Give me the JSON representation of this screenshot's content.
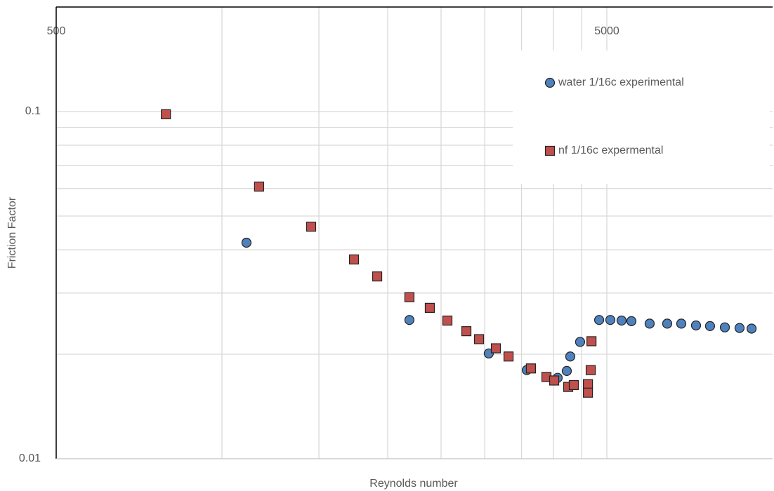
{
  "chart_data": {
    "type": "scatter",
    "x_label": "Reynolds number",
    "y_label": "Friction Factor",
    "xlog": true,
    "ylog": true,
    "grid": true,
    "legend": "upper right",
    "xlim": [
      500,
      10000
    ],
    "ylim": [
      0.01,
      0.2
    ],
    "xticks": [
      500,
      5000
    ],
    "xminor": [
      1000,
      1500,
      2000,
      2500,
      3000,
      3500,
      4000,
      4500
    ],
    "yticks": [
      0.01,
      0.1
    ],
    "yminor": [
      0.02,
      0.03,
      0.04,
      0.05,
      0.06,
      0.07,
      0.08,
      0.09
    ],
    "series": [
      {
        "name": "water 1/16c experimental",
        "color": "#4f81bd",
        "marker": "circle",
        "x": [
          1108,
          2190,
          3052,
          3578,
          4070,
          4229,
          4291,
          4471,
          4842,
          5074,
          5318,
          5541,
          5980,
          6436,
          6826,
          7260,
          7698,
          8190,
          8709,
          9159
        ],
        "values": [
          0.0419,
          0.0251,
          0.0201,
          0.018,
          0.0171,
          0.0179,
          0.0197,
          0.0217,
          0.0251,
          0.0251,
          0.025,
          0.0249,
          0.0245,
          0.0245,
          0.0245,
          0.0242,
          0.0241,
          0.0239,
          0.0238,
          0.0237
        ]
      },
      {
        "name": "nf 1/16c expermental",
        "color": "#c0504d",
        "marker": "square",
        "x": [
          791,
          1168,
          1452,
          1737,
          1914,
          2190,
          2385,
          2567,
          2779,
          2930,
          3144,
          3315,
          3640,
          3884,
          4012,
          4254,
          4355,
          4620,
          4620,
          4674,
          4689
        ],
        "values": [
          0.0982,
          0.0608,
          0.0466,
          0.0375,
          0.0335,
          0.0292,
          0.0272,
          0.025,
          0.0233,
          0.0221,
          0.0208,
          0.0197,
          0.0182,
          0.0172,
          0.0168,
          0.0161,
          0.0163,
          0.0164,
          0.0155,
          0.018,
          0.0218
        ]
      }
    ]
  }
}
